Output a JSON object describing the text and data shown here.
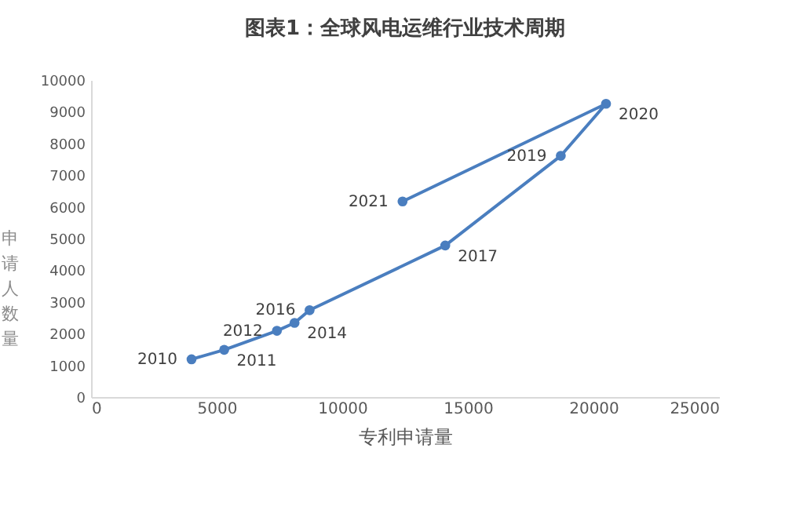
{
  "chart_data": {
    "type": "line",
    "title": "图表1：全球风电运维行业技术周期",
    "xlabel": "专利申请量",
    "ylabel": "申请人数量",
    "x": [
      4000,
      5300,
      7400,
      8100,
      8700,
      14100,
      18700,
      20500,
      12400
    ],
    "values": [
      1190,
      1490,
      2090,
      2340,
      2740,
      4780,
      7610,
      9250,
      6170
    ],
    "annotations": [
      {
        "text": "2010",
        "x": 4000,
        "y": 1190
      },
      {
        "text": "2011",
        "x": 5300,
        "y": 1490
      },
      {
        "text": "2012",
        "x": 7400,
        "y": 2090
      },
      {
        "text": "2014",
        "x": 8100,
        "y": 2340
      },
      {
        "text": "2016",
        "x": 8700,
        "y": 2740
      },
      {
        "text": "2017",
        "x": 14100,
        "y": 4780
      },
      {
        "text": "2019",
        "x": 18700,
        "y": 7610
      },
      {
        "text": "2020",
        "x": 20500,
        "y": 9250
      },
      {
        "text": "2021",
        "x": 12400,
        "y": 6170
      }
    ],
    "color": "#4a7ebf",
    "marker": "circle",
    "xlim": [
      0,
      25000
    ],
    "xticks": [
      0,
      5000,
      10000,
      15000,
      20000,
      25000
    ],
    "ylim": [
      0,
      10000
    ],
    "yticks": [
      0,
      1000,
      2000,
      3000,
      4000,
      5000,
      6000,
      7000,
      8000,
      9000,
      10000
    ],
    "grid": false
  }
}
